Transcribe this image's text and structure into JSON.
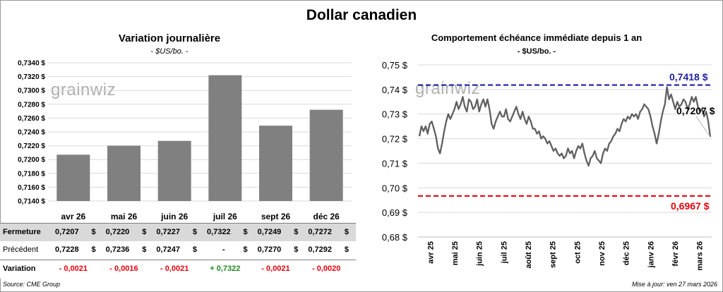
{
  "main_title": "Dollar canadien",
  "left_panel": {
    "title": "Variation  journalière",
    "subtitle": "- $US/bo. -",
    "watermark": "grainwiz"
  },
  "right_panel": {
    "title": "Comportement échéance immédiate depuis 1 an",
    "subtitle": "- $US/bo. -",
    "watermark": "grainwiz",
    "max_label": "0,7418 $",
    "min_label": "0,6967 $",
    "last_label": "0,7207 $"
  },
  "table": {
    "rows": {
      "fermeture": {
        "label": "Fermeture",
        "values": [
          "0,7207",
          "0,7220",
          "0,7227",
          "0,7322",
          "0,7249",
          "0,7272"
        ]
      },
      "precedent": {
        "label": "Précédent",
        "values": [
          "0,7228",
          "0,7236",
          "0,7247",
          "-",
          "0,7270",
          "0,7292"
        ]
      },
      "variation": {
        "label": "Variation",
        "values": [
          "- 0,0021",
          "- 0,0016",
          "- 0,0021",
          "+ 0,7322",
          "- 0,0021",
          "- 0,0020"
        ]
      }
    },
    "dollar_sign": "$",
    "colors": {
      "negative": "#e8000b",
      "positive": "#1e8a1e",
      "fermeture_bg": "#d9d9d9"
    }
  },
  "footer": {
    "source": "Source: CME Group",
    "update": "Mise à jour: ven 27 mars 2026"
  },
  "chart_data": [
    {
      "type": "bar",
      "title": "Variation  journalière",
      "subtitle": "- $US/bo. -",
      "categories": [
        "avr 26",
        "mai 26",
        "juin 26",
        "juil 26",
        "sept 26",
        "déc 26"
      ],
      "values": [
        0.7207,
        0.722,
        0.7227,
        0.7322,
        0.7249,
        0.7272
      ],
      "ylim": [
        0.714,
        0.734
      ],
      "yticks": [
        "0,7140 $",
        "0,7160 $",
        "0,7180 $",
        "0,7200 $",
        "0,7220 $",
        "0,7240 $",
        "0,7260 $",
        "0,7280 $",
        "0,7300 $",
        "0,7320 $",
        "0,7340 $"
      ],
      "color": "#808080",
      "grid": true
    },
    {
      "type": "line",
      "title": "Comportement échéance immédiate depuis 1 an",
      "subtitle": "- $US/bo. -",
      "ylim": [
        0.68,
        0.75
      ],
      "yticks": [
        "0,68 $",
        "0,69 $",
        "0,70 $",
        "0,71 $",
        "0,72 $",
        "0,73 $",
        "0,74 $",
        "0,75 $"
      ],
      "x_labels": [
        "avr 25",
        "mai 25",
        "juin 25",
        "juil 25",
        "août 25",
        "sept 25",
        "oct 25",
        "nov 25",
        "déc 25",
        "janv 26",
        "févr 26",
        "mars 26"
      ],
      "series": [
        {
          "values": [
            0.721,
            0.725,
            0.723,
            0.725,
            0.722,
            0.726,
            0.727,
            0.724,
            0.721,
            0.716,
            0.714,
            0.718,
            0.723,
            0.727,
            0.73,
            0.728,
            0.73,
            0.732,
            0.735,
            0.732,
            0.734,
            0.737,
            0.733,
            0.731,
            0.736,
            0.735,
            0.732,
            0.733,
            0.736,
            0.731,
            0.734,
            0.736,
            0.733,
            0.736,
            0.732,
            0.726,
            0.724,
            0.727,
            0.729,
            0.731,
            0.729,
            0.729,
            0.732,
            0.728,
            0.727,
            0.729,
            0.731,
            0.733,
            0.73,
            0.728,
            0.731,
            0.728,
            0.726,
            0.729,
            0.727,
            0.724,
            0.724,
            0.722,
            0.723,
            0.72,
            0.721,
            0.72,
            0.718,
            0.719,
            0.717,
            0.715,
            0.716,
            0.714,
            0.713,
            0.714,
            0.712,
            0.713,
            0.716,
            0.714,
            0.715,
            0.712,
            0.715,
            0.717,
            0.716,
            0.718,
            0.714,
            0.711,
            0.709,
            0.712,
            0.713,
            0.715,
            0.712,
            0.711,
            0.71,
            0.714,
            0.716,
            0.715,
            0.718,
            0.719,
            0.721,
            0.722,
            0.724,
            0.723,
            0.726,
            0.728,
            0.727,
            0.729,
            0.728,
            0.73,
            0.729,
            0.73,
            0.728,
            0.731,
            0.732,
            0.734,
            0.733,
            0.732,
            0.729,
            0.725,
            0.722,
            0.718,
            0.722,
            0.727,
            0.731,
            0.734,
            0.741,
            0.736,
            0.738,
            0.735,
            0.732,
            0.735,
            0.733,
            0.734,
            0.736,
            0.735,
            0.732,
            0.734,
            0.737,
            0.735,
            0.737,
            0.733,
            0.731,
            0.732,
            0.729,
            0.731,
            0.727,
            0.7207
          ],
          "color": "#606060"
        }
      ],
      "reference_lines": [
        {
          "label": "0,7418 $",
          "value": 0.7418,
          "color": "#1e1ea8",
          "style": "dashed"
        },
        {
          "label": "0,6967 $",
          "value": 0.6967,
          "color": "#e8000b",
          "style": "dashed"
        }
      ],
      "last_value_label": "0,7207 $",
      "grid": true
    }
  ]
}
